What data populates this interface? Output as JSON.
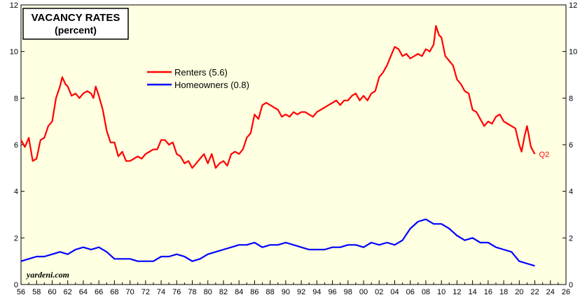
{
  "chart_data": {
    "type": "line",
    "title": "VACANCY RATES",
    "subtitle": "(percent)",
    "x_tick_labels": [
      "56",
      "58",
      "60",
      "62",
      "64",
      "66",
      "68",
      "70",
      "72",
      "74",
      "76",
      "78",
      "80",
      "82",
      "84",
      "86",
      "88",
      "90",
      "92",
      "94",
      "96",
      "98",
      "00",
      "02",
      "04",
      "06",
      "08",
      "10",
      "12",
      "14",
      "16",
      "18",
      "20",
      "22",
      "24",
      "26"
    ],
    "xlim": [
      1956,
      2026
    ],
    "ylim": [
      0,
      12
    ],
    "y_ticks": [
      "0",
      "2",
      "4",
      "6",
      "8",
      "10",
      "12"
    ],
    "grid": false,
    "legend_position": "upper-left",
    "end_label": "Q2",
    "credit": "yardeni.com",
    "series": [
      {
        "name": "Renters (5.6)",
        "color": "#ff0000",
        "points": [
          [
            1956.0,
            6.2
          ],
          [
            1956.5,
            5.9
          ],
          [
            1957.0,
            6.3
          ],
          [
            1957.5,
            5.3
          ],
          [
            1958.0,
            5.4
          ],
          [
            1958.5,
            6.2
          ],
          [
            1959.0,
            6.3
          ],
          [
            1959.5,
            6.8
          ],
          [
            1960.0,
            7.0
          ],
          [
            1960.5,
            8.0
          ],
          [
            1961.0,
            8.5
          ],
          [
            1961.3,
            8.9
          ],
          [
            1961.7,
            8.6
          ],
          [
            1962.0,
            8.5
          ],
          [
            1962.5,
            8.1
          ],
          [
            1963.0,
            8.2
          ],
          [
            1963.5,
            8.0
          ],
          [
            1964.0,
            8.2
          ],
          [
            1964.5,
            8.3
          ],
          [
            1965.0,
            8.2
          ],
          [
            1965.3,
            8.0
          ],
          [
            1965.6,
            8.5
          ],
          [
            1966.0,
            8.1
          ],
          [
            1966.5,
            7.5
          ],
          [
            1967.0,
            6.6
          ],
          [
            1967.5,
            6.1
          ],
          [
            1968.0,
            6.1
          ],
          [
            1968.5,
            5.5
          ],
          [
            1969.0,
            5.7
          ],
          [
            1969.5,
            5.3
          ],
          [
            1970.0,
            5.3
          ],
          [
            1970.5,
            5.4
          ],
          [
            1971.0,
            5.5
          ],
          [
            1971.5,
            5.4
          ],
          [
            1972.0,
            5.6
          ],
          [
            1972.5,
            5.7
          ],
          [
            1973.0,
            5.8
          ],
          [
            1973.5,
            5.8
          ],
          [
            1974.0,
            6.2
          ],
          [
            1974.5,
            6.2
          ],
          [
            1975.0,
            6.0
          ],
          [
            1975.5,
            6.1
          ],
          [
            1976.0,
            5.6
          ],
          [
            1976.5,
            5.5
          ],
          [
            1977.0,
            5.2
          ],
          [
            1977.5,
            5.3
          ],
          [
            1978.0,
            5.0
          ],
          [
            1978.5,
            5.2
          ],
          [
            1979.0,
            5.4
          ],
          [
            1979.5,
            5.6
          ],
          [
            1980.0,
            5.2
          ],
          [
            1980.5,
            5.6
          ],
          [
            1981.0,
            5.0
          ],
          [
            1981.5,
            5.2
          ],
          [
            1982.0,
            5.3
          ],
          [
            1982.5,
            5.1
          ],
          [
            1983.0,
            5.6
          ],
          [
            1983.5,
            5.7
          ],
          [
            1984.0,
            5.6
          ],
          [
            1984.5,
            5.8
          ],
          [
            1985.0,
            6.3
          ],
          [
            1985.5,
            6.5
          ],
          [
            1986.0,
            7.3
          ],
          [
            1986.5,
            7.1
          ],
          [
            1987.0,
            7.7
          ],
          [
            1987.5,
            7.8
          ],
          [
            1988.0,
            7.7
          ],
          [
            1988.5,
            7.6
          ],
          [
            1989.0,
            7.5
          ],
          [
            1989.5,
            7.2
          ],
          [
            1990.0,
            7.3
          ],
          [
            1990.5,
            7.2
          ],
          [
            1991.0,
            7.4
          ],
          [
            1991.5,
            7.3
          ],
          [
            1992.0,
            7.4
          ],
          [
            1992.5,
            7.4
          ],
          [
            1993.0,
            7.3
          ],
          [
            1993.5,
            7.2
          ],
          [
            1994.0,
            7.4
          ],
          [
            1994.5,
            7.5
          ],
          [
            1995.0,
            7.6
          ],
          [
            1995.5,
            7.7
          ],
          [
            1996.0,
            7.8
          ],
          [
            1996.5,
            7.9
          ],
          [
            1997.0,
            7.7
          ],
          [
            1997.5,
            7.9
          ],
          [
            1998.0,
            7.9
          ],
          [
            1998.5,
            8.1
          ],
          [
            1999.0,
            8.2
          ],
          [
            1999.5,
            7.9
          ],
          [
            2000.0,
            8.1
          ],
          [
            2000.5,
            7.9
          ],
          [
            2001.0,
            8.2
          ],
          [
            2001.5,
            8.3
          ],
          [
            2002.0,
            8.9
          ],
          [
            2002.5,
            9.1
          ],
          [
            2003.0,
            9.4
          ],
          [
            2003.5,
            9.8
          ],
          [
            2004.0,
            10.2
          ],
          [
            2004.5,
            10.1
          ],
          [
            2005.0,
            9.8
          ],
          [
            2005.5,
            9.9
          ],
          [
            2006.0,
            9.7
          ],
          [
            2006.5,
            9.8
          ],
          [
            2007.0,
            9.9
          ],
          [
            2007.5,
            9.8
          ],
          [
            2008.0,
            10.1
          ],
          [
            2008.5,
            10.0
          ],
          [
            2009.0,
            10.3
          ],
          [
            2009.3,
            11.1
          ],
          [
            2009.7,
            10.7
          ],
          [
            2010.0,
            10.6
          ],
          [
            2010.5,
            9.8
          ],
          [
            2011.0,
            9.6
          ],
          [
            2011.5,
            9.4
          ],
          [
            2012.0,
            8.8
          ],
          [
            2012.5,
            8.6
          ],
          [
            2013.0,
            8.3
          ],
          [
            2013.5,
            8.2
          ],
          [
            2014.0,
            7.5
          ],
          [
            2014.5,
            7.4
          ],
          [
            2015.0,
            7.1
          ],
          [
            2015.5,
            6.8
          ],
          [
            2016.0,
            7.0
          ],
          [
            2016.5,
            6.9
          ],
          [
            2017.0,
            7.2
          ],
          [
            2017.5,
            7.3
          ],
          [
            2018.0,
            7.0
          ],
          [
            2018.5,
            6.9
          ],
          [
            2019.0,
            6.8
          ],
          [
            2019.5,
            6.7
          ],
          [
            2020.0,
            6.0
          ],
          [
            2020.3,
            5.7
          ],
          [
            2020.7,
            6.4
          ],
          [
            2021.0,
            6.8
          ],
          [
            2021.5,
            5.9
          ],
          [
            2022.0,
            5.6
          ]
        ]
      },
      {
        "name": "Homeowners (0.8)",
        "color": "#0000ff",
        "points": [
          [
            1956.0,
            1.0
          ],
          [
            1957.0,
            1.1
          ],
          [
            1958.0,
            1.2
          ],
          [
            1959.0,
            1.2
          ],
          [
            1960.0,
            1.3
          ],
          [
            1961.0,
            1.4
          ],
          [
            1962.0,
            1.3
          ],
          [
            1963.0,
            1.5
          ],
          [
            1964.0,
            1.6
          ],
          [
            1965.0,
            1.5
          ],
          [
            1966.0,
            1.6
          ],
          [
            1967.0,
            1.4
          ],
          [
            1968.0,
            1.1
          ],
          [
            1969.0,
            1.1
          ],
          [
            1970.0,
            1.1
          ],
          [
            1971.0,
            1.0
          ],
          [
            1972.0,
            1.0
          ],
          [
            1973.0,
            1.0
          ],
          [
            1974.0,
            1.2
          ],
          [
            1975.0,
            1.2
          ],
          [
            1976.0,
            1.3
          ],
          [
            1977.0,
            1.2
          ],
          [
            1978.0,
            1.0
          ],
          [
            1979.0,
            1.1
          ],
          [
            1980.0,
            1.3
          ],
          [
            1981.0,
            1.4
          ],
          [
            1982.0,
            1.5
          ],
          [
            1983.0,
            1.6
          ],
          [
            1984.0,
            1.7
          ],
          [
            1985.0,
            1.7
          ],
          [
            1986.0,
            1.8
          ],
          [
            1987.0,
            1.6
          ],
          [
            1988.0,
            1.7
          ],
          [
            1989.0,
            1.7
          ],
          [
            1990.0,
            1.8
          ],
          [
            1991.0,
            1.7
          ],
          [
            1992.0,
            1.6
          ],
          [
            1993.0,
            1.5
          ],
          [
            1994.0,
            1.5
          ],
          [
            1995.0,
            1.5
          ],
          [
            1996.0,
            1.6
          ],
          [
            1997.0,
            1.6
          ],
          [
            1998.0,
            1.7
          ],
          [
            1999.0,
            1.7
          ],
          [
            2000.0,
            1.6
          ],
          [
            2001.0,
            1.8
          ],
          [
            2002.0,
            1.7
          ],
          [
            2003.0,
            1.8
          ],
          [
            2004.0,
            1.7
          ],
          [
            2005.0,
            1.9
          ],
          [
            2006.0,
            2.4
          ],
          [
            2007.0,
            2.7
          ],
          [
            2008.0,
            2.8
          ],
          [
            2009.0,
            2.6
          ],
          [
            2010.0,
            2.6
          ],
          [
            2011.0,
            2.4
          ],
          [
            2012.0,
            2.1
          ],
          [
            2013.0,
            1.9
          ],
          [
            2014.0,
            2.0
          ],
          [
            2015.0,
            1.8
          ],
          [
            2016.0,
            1.8
          ],
          [
            2017.0,
            1.6
          ],
          [
            2018.0,
            1.5
          ],
          [
            2019.0,
            1.4
          ],
          [
            2020.0,
            1.0
          ],
          [
            2021.0,
            0.9
          ],
          [
            2022.0,
            0.8
          ]
        ]
      }
    ]
  }
}
